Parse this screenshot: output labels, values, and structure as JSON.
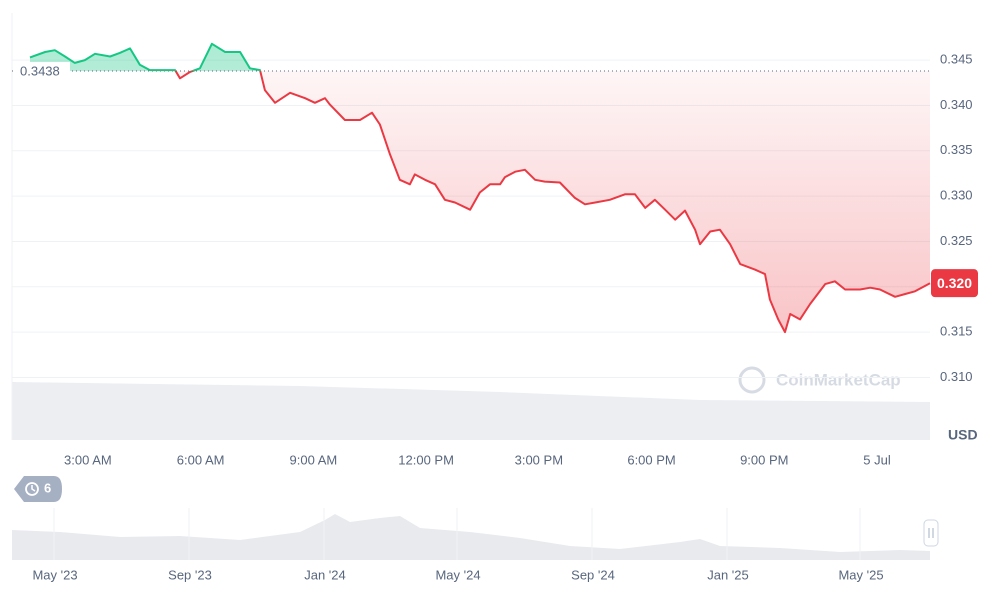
{
  "chart_data": {
    "type": "line",
    "x": [
      1.46,
      1.86,
      2.12,
      2.39,
      2.65,
      2.92,
      3.19,
      3.59,
      3.85,
      4.12,
      4.38,
      4.65,
      5.05,
      5.32,
      5.45,
      5.72,
      5.98,
      6.3,
      6.65,
      7.05,
      7.31,
      7.58,
      7.71,
      7.98,
      8.38,
      8.78,
      9.04,
      9.31,
      9.44,
      9.84,
      10.24,
      10.56,
      10.77,
      11.04,
      11.3,
      11.57,
      11.7,
      11.97,
      12.24,
      12.5,
      12.77,
      13.17,
      13.43,
      13.7,
      13.97,
      14.1,
      14.37,
      14.63,
      14.9,
      15.16,
      15.56,
      15.96,
      16.23,
      16.5,
      16.89,
      17.29,
      17.56,
      17.83,
      18.09,
      18.36,
      18.63,
      18.89,
      19.16,
      19.29,
      19.56,
      19.82,
      20.09,
      20.36,
      20.75,
      21.02,
      21.15,
      21.37,
      21.55,
      21.69,
      21.95,
      22.22,
      22.62,
      22.88,
      23.15,
      23.55,
      23.82,
      24.08,
      24.48,
      24.75,
      25.01,
      25.41
    ],
    "values": [
      0.3453,
      0.3459,
      0.3461,
      0.3454,
      0.3447,
      0.345,
      0.3457,
      0.3454,
      0.3458,
      0.3463,
      0.3445,
      0.3439,
      0.3439,
      0.3439,
      0.343,
      0.3437,
      0.3441,
      0.3468,
      0.3459,
      0.3459,
      0.3441,
      0.3439,
      0.3417,
      0.3403,
      0.3414,
      0.3408,
      0.3403,
      0.3408,
      0.3401,
      0.3384,
      0.3384,
      0.3392,
      0.3379,
      0.3346,
      0.3318,
      0.3313,
      0.3324,
      0.3318,
      0.3313,
      0.3296,
      0.3293,
      0.3285,
      0.3304,
      0.3313,
      0.3313,
      0.3321,
      0.3327,
      0.3329,
      0.3318,
      0.3316,
      0.3315,
      0.3298,
      0.3291,
      0.3293,
      0.3296,
      0.3302,
      0.3302,
      0.3287,
      0.3296,
      0.3285,
      0.3274,
      0.3284,
      0.3263,
      0.3247,
      0.3261,
      0.3263,
      0.3247,
      0.3225,
      0.3219,
      0.3214,
      0.3186,
      0.3164,
      0.315,
      0.317,
      0.3164,
      0.3181,
      0.3203,
      0.3206,
      0.3197,
      0.3197,
      0.3199,
      0.3197,
      0.3189,
      0.3192,
      0.3195,
      0.3204
    ],
    "xlim": [
      0.98,
      25.41
    ],
    "xticks": [
      {
        "value": 3,
        "label": "3:00 AM"
      },
      {
        "value": 6,
        "label": "6:00 AM"
      },
      {
        "value": 9,
        "label": "9:00 AM"
      },
      {
        "value": 12,
        "label": "12:00 PM"
      },
      {
        "value": 15,
        "label": "3:00 PM"
      },
      {
        "value": 18,
        "label": "6:00 PM"
      },
      {
        "value": 21,
        "label": "9:00 PM"
      },
      {
        "value": 24,
        "label": "5 Jul"
      }
    ],
    "ylim": [
      0.3031,
      0.3502
    ],
    "yticks": [
      0.345,
      {
        "value": 0.34,
        "label": "0.340"
      },
      0.335,
      {
        "value": 0.33,
        "label": "0.330"
      },
      0.325,
      {
        "value": 0.32,
        "label": "0.320"
      },
      0.315,
      {
        "value": 0.31,
        "label": "0.310"
      }
    ],
    "y_axis_label": "USD",
    "grid": true,
    "reference": {
      "value": 0.3438,
      "label": "0.3438"
    },
    "current_price": {
      "value": 0.3204,
      "label": "0.320"
    },
    "colors": {
      "above": "#16c784",
      "below": "#ea3943"
    },
    "watermark": "CoinMarketCap",
    "history_badge": "6",
    "navigator_labels": [
      "May '23",
      "Sep '23",
      "Jan '24",
      "May '24",
      "Sep '24",
      "Jan '25",
      "May '25"
    ]
  }
}
